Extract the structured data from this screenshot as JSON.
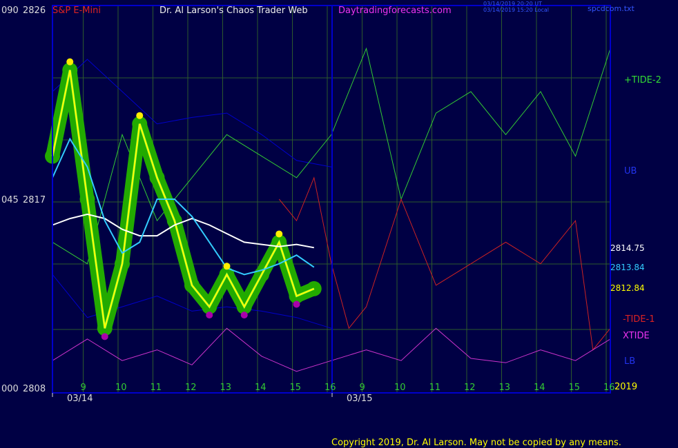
{
  "header": {
    "symbol": "S&P E-Mini",
    "title": "Dr. Al Larson's Chaos Trader Web",
    "site": "Daytradingforecasts.com",
    "timestamp_ut": "03/14/2019 20:20 UT",
    "timestamp_local": "03/14/2019 15:20 Local",
    "data_file": "spcdcom.txt"
  },
  "left_axis": {
    "top": {
      "code": "090",
      "price": "2826"
    },
    "mid": {
      "code": "045",
      "price": "2817"
    },
    "bottom": {
      "code": "000",
      "price": "2808"
    }
  },
  "right_labels": {
    "tide_plus": "+TIDE-2",
    "ub": "UB",
    "price1": "2814.75",
    "price2": "2813.84",
    "price3": "2812.84",
    "tide_minus": "-TIDE-1",
    "xtide": "XTIDE",
    "lb": "LB",
    "year": "2019"
  },
  "x_axis": {
    "day1_hours": [
      "9",
      "10",
      "11",
      "12",
      "13",
      "14",
      "15",
      "16"
    ],
    "day2_hours": [
      "9",
      "10",
      "11",
      "12",
      "13",
      "14",
      "15",
      "16"
    ],
    "date1": "03/14",
    "date2": "03/15"
  },
  "footer": {
    "copyright": "Copyright 2019, Dr. Al Larson. May not be copied by any means."
  },
  "colors": {
    "background": "#000044",
    "grid": "#2d5a2d",
    "frame": "#0000cc",
    "tide_plus": "#33cc33",
    "tide_minus": "#cc2222",
    "band": "#0000cc",
    "xtide": "#cc33cc",
    "price": "#ffff00",
    "avg_white": "#ffffff",
    "avg_cyan": "#33ccff",
    "highlight": "#22aa00",
    "dot_high": "#ffee00",
    "dot_low": "#aa00aa"
  },
  "chart_data": {
    "type": "line",
    "ylim": [
      2808,
      2826
    ],
    "series": [
      {
        "name": "price",
        "x": [
          0,
          0.5,
          1,
          1.5,
          2,
          2.5,
          3,
          3.5,
          4,
          4.5,
          5,
          5.5,
          6,
          6.5,
          7,
          7.5
        ],
        "values": [
          2819,
          2823,
          2817,
          2811,
          2814,
          2820.5,
          2818,
          2816,
          2813,
          2812,
          2813.5,
          2812,
          2813.5,
          2815,
          2812.5,
          2812.84
        ]
      },
      {
        "name": "2814.75",
        "x": [
          0,
          0.5,
          1,
          1.5,
          2,
          2.5,
          3,
          3.5,
          4,
          4.5,
          5,
          5.5,
          6,
          6.5,
          7,
          7.5
        ],
        "values": [
          2815.8,
          2816.1,
          2816.3,
          2816.1,
          2815.6,
          2815.3,
          2815.3,
          2815.8,
          2816.1,
          2815.8,
          2815.4,
          2815.0,
          2814.9,
          2814.8,
          2814.9,
          2814.75
        ]
      },
      {
        "name": "2813.84",
        "x": [
          0,
          0.5,
          1,
          1.5,
          2,
          2.5,
          3,
          3.5,
          4,
          4.5,
          5,
          5.5,
          6,
          6.5,
          7,
          7.5
        ],
        "values": [
          2818.0,
          2819.8,
          2818.5,
          2816.0,
          2814.5,
          2815.0,
          2817.0,
          2817.0,
          2816.2,
          2815.0,
          2813.8,
          2813.5,
          2813.7,
          2814.0,
          2814.4,
          2813.84
        ]
      },
      {
        "name": "+TIDE-2",
        "x": [
          0,
          1,
          2,
          3,
          4,
          5,
          6,
          7,
          8,
          9,
          10,
          11,
          12,
          13,
          14,
          15,
          16
        ],
        "values": [
          2815,
          2814,
          2820,
          2816,
          2818,
          2820,
          2819,
          2818,
          2820,
          2824,
          2817,
          2821,
          2822,
          2820,
          2822,
          2819,
          2824
        ]
      },
      {
        "name": "-TIDE-1",
        "x": [
          6.5,
          7,
          7.5,
          8,
          8.5,
          9,
          10,
          11,
          12,
          13,
          14,
          15,
          15.5,
          16
        ],
        "values": [
          2817,
          2816,
          2818,
          2814,
          2811,
          2812,
          2817,
          2813,
          2814,
          2815,
          2814,
          2816,
          2810,
          2811
        ]
      },
      {
        "name": "XTIDE",
        "x": [
          0,
          1,
          2,
          3,
          4,
          5,
          6,
          7,
          8,
          9,
          10,
          11,
          12,
          13,
          14,
          15,
          16
        ],
        "values": [
          2809.5,
          2810.5,
          2809.5,
          2810,
          2809.3,
          2811,
          2809.7,
          2809,
          2809.5,
          2810,
          2809.5,
          2811,
          2809.6,
          2809.4,
          2810,
          2809.5,
          2810.5
        ]
      }
    ]
  }
}
